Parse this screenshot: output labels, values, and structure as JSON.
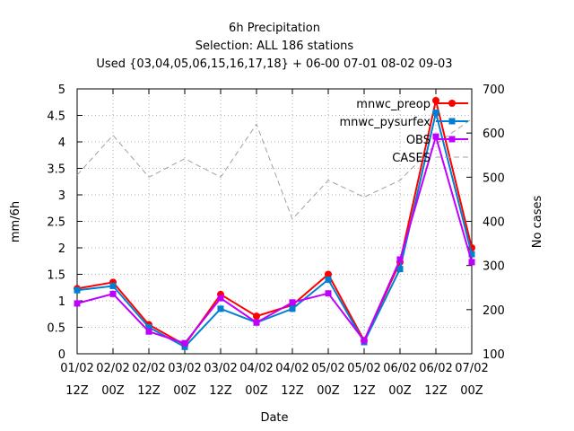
{
  "chart_data": {
    "type": "line",
    "title": [
      "6h Precipitation",
      "Selection: ALL     186 stations",
      "Used {03,04,05,06,15,16,17,18} + 06-00 07-01 08-02 09-03"
    ],
    "xlabel": "Date",
    "ylabel": "mm/6h",
    "y2label": "No cases",
    "ylim": [
      0,
      5
    ],
    "y2lim": [
      100,
      700
    ],
    "yticks": [
      "0",
      "0.5",
      "1",
      "1.5",
      "2",
      "2.5",
      "3",
      "3.5",
      "4",
      "4.5",
      "5"
    ],
    "y2ticks": [
      "100",
      "200",
      "300",
      "400",
      "500",
      "600",
      "700"
    ],
    "categories": [
      [
        "01/02",
        "12Z"
      ],
      [
        "02/02",
        "00Z"
      ],
      [
        "02/02",
        "12Z"
      ],
      [
        "03/02",
        "00Z"
      ],
      [
        "03/02",
        "12Z"
      ],
      [
        "04/02",
        "00Z"
      ],
      [
        "04/02",
        "12Z"
      ],
      [
        "05/02",
        "00Z"
      ],
      [
        "05/02",
        "12Z"
      ],
      [
        "06/02",
        "00Z"
      ],
      [
        "06/02",
        "12Z"
      ],
      [
        "07/02",
        "00Z"
      ]
    ],
    "grid": true,
    "legend_position": "top-right",
    "series": [
      {
        "name": "mnwc_preop",
        "axis": "left",
        "color": "#ff0000",
        "marker": "circle",
        "values": [
          1.23,
          1.35,
          0.55,
          0.17,
          1.12,
          0.71,
          0.92,
          1.5,
          0.25,
          1.73,
          4.78,
          2.0
        ]
      },
      {
        "name": "mnwc_pysurfex",
        "axis": "left",
        "color": "#0080d0",
        "marker": "square",
        "values": [
          1.2,
          1.28,
          0.5,
          0.13,
          0.85,
          0.59,
          0.85,
          1.4,
          0.22,
          1.6,
          4.55,
          1.88
        ]
      },
      {
        "name": "OBS",
        "axis": "left",
        "color": "#c000ff",
        "marker": "square",
        "values": [
          0.95,
          1.13,
          0.42,
          0.2,
          1.05,
          0.59,
          0.97,
          1.14,
          0.25,
          1.78,
          4.1,
          1.73
        ]
      },
      {
        "name": "CASES",
        "axis": "right",
        "color": "#a0a0a0",
        "dashed": true,
        "values": [
          505,
          595,
          500,
          542,
          500,
          620,
          405,
          493,
          455,
          493,
          575,
          632
        ]
      }
    ]
  }
}
